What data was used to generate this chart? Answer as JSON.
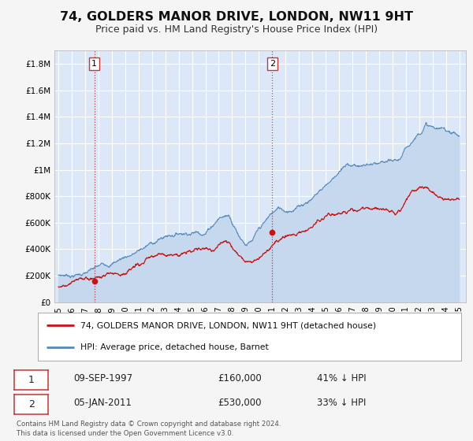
{
  "title": "74, GOLDERS MANOR DRIVE, LONDON, NW11 9HT",
  "subtitle": "Price paid vs. HM Land Registry's House Price Index (HPI)",
  "title_fontsize": 11.5,
  "subtitle_fontsize": 9,
  "xlim": [
    1994.7,
    2025.5
  ],
  "ylim": [
    0,
    1900000
  ],
  "yticks": [
    0,
    200000,
    400000,
    600000,
    800000,
    1000000,
    1200000,
    1400000,
    1600000,
    1800000
  ],
  "ytick_labels": [
    "£0",
    "£200K",
    "£400K",
    "£600K",
    "£800K",
    "£1M",
    "£1.2M",
    "£1.4M",
    "£1.6M",
    "£1.8M"
  ],
  "xticks": [
    1995,
    1996,
    1997,
    1998,
    1999,
    2000,
    2001,
    2002,
    2003,
    2004,
    2005,
    2006,
    2007,
    2008,
    2009,
    2010,
    2011,
    2012,
    2013,
    2014,
    2015,
    2016,
    2017,
    2018,
    2019,
    2020,
    2021,
    2022,
    2023,
    2024,
    2025
  ],
  "fig_bg_color": "#f5f5f5",
  "plot_bg_color": "#dce8f8",
  "grid_color": "#ffffff",
  "red_line_color": "#cc1111",
  "blue_line_color": "#5588bb",
  "blue_fill_color": "#c5d8ee",
  "vline_color": "#cc3333",
  "transaction1_x": 1997.69,
  "transaction1_y": 160000,
  "transaction2_x": 2011.01,
  "transaction2_y": 530000,
  "legend_line1": "74, GOLDERS MANOR DRIVE, LONDON, NW11 9HT (detached house)",
  "legend_line2": "HPI: Average price, detached house, Barnet",
  "note1_label": "1",
  "note1_date": "09-SEP-1997",
  "note1_price": "£160,000",
  "note1_hpi": "41% ↓ HPI",
  "note2_label": "2",
  "note2_date": "05-JAN-2011",
  "note2_price": "£530,000",
  "note2_hpi": "33% ↓ HPI",
  "footer": "Contains HM Land Registry data © Crown copyright and database right 2024.\nThis data is licensed under the Open Government Licence v3.0."
}
